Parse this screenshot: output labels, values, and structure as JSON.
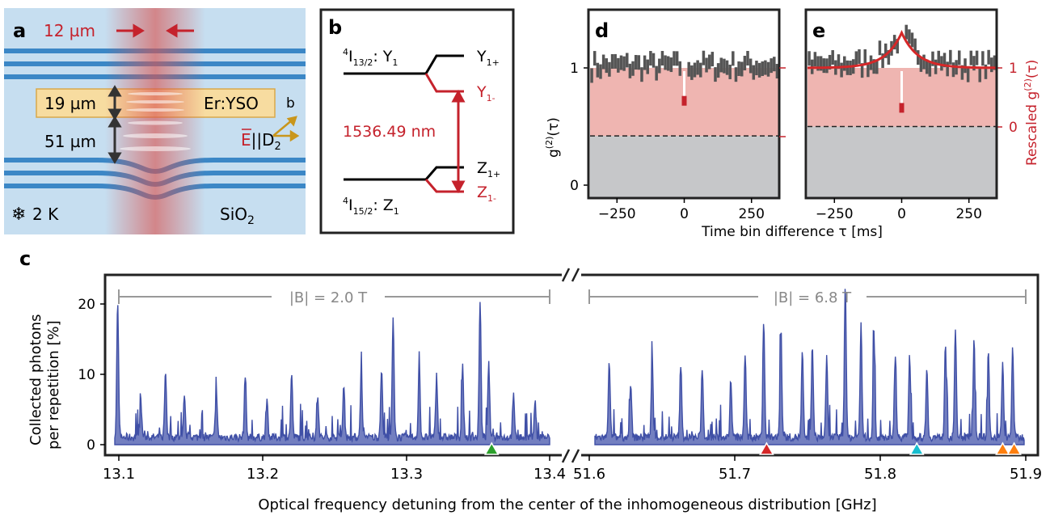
{
  "panels": {
    "a": {
      "label": "a",
      "width_label": "12 µm",
      "crystal_thickness": "19 µm",
      "crystal_label": "Er:YSO",
      "gap_label": "51 µm",
      "axis_label": "b",
      "pol_E": "E",
      "pol_rest": "||D",
      "pol_sub": "2",
      "temp_label": "2 K",
      "substrate": "SiO",
      "substrate_sub": "2",
      "colors": {
        "mirror": "#3b87c6",
        "crystal": "#f7dca0",
        "beam": "#d9534f",
        "arrow": "#c5222c"
      }
    },
    "b": {
      "label": "b",
      "upper_pre": "4",
      "upper_I": "I",
      "upper_sub": "13/2",
      "upper_state": ": Y",
      "upper_state_sub": "1",
      "lower_pre": "4",
      "lower_I": "I",
      "lower_sub": "15/2",
      "lower_state": ": Z",
      "lower_state_sub": "1",
      "Y1p": "Y",
      "Y1p_sub": "1+",
      "Y1m": "Y",
      "Y1m_sub": "1-",
      "Z1p": "Z",
      "Z1p_sub": "1+",
      "Z1m": "Z",
      "Z1m_sub": "1-",
      "transition": "1536.49 nm"
    },
    "d": {
      "label": "d",
      "ylabel_g": "g",
      "ylabel_sup": "(2)",
      "ylabel_tau": "(τ)",
      "yticks": [
        "0",
        "1"
      ]
    },
    "e": {
      "label": "e",
      "right_label": "Rescaled g",
      "right_sup": "(2)",
      "right_tau": "(τ)",
      "right_ticks": [
        "0",
        "1"
      ]
    },
    "de_shared": {
      "xticks": [
        "−250",
        "0",
        "250"
      ],
      "xlabel": "Time bin difference τ [ms]"
    },
    "c": {
      "label": "c",
      "ylabel_line1": "Collected photons",
      "ylabel_line2": "per repetition [%]",
      "yticks": [
        "0",
        "10",
        "20"
      ],
      "field1": "|B| = 2.0 T",
      "field2": "|B| = 6.8 T",
      "xticks_left": [
        "13.1",
        "13.2",
        "13.3",
        "13.4"
      ],
      "xticks_right": [
        "51.6",
        "51.7",
        "51.8",
        "51.9"
      ],
      "xlabel": "Optical frequency detuning from the center of the inhomogeneous distribution [GHz]",
      "markers": [
        {
          "ghz": 13.36,
          "color": "#2ca02c"
        },
        {
          "ghz": 51.72,
          "color": "#d62728"
        },
        {
          "ghz": 51.825,
          "color": "#17becf"
        },
        {
          "ghz": 51.885,
          "color": "#ff7f0e"
        },
        {
          "ghz": 51.893,
          "color": "#ff7f0e"
        }
      ],
      "line_color": "#3f4fa6",
      "fill_color": "#5a68b5"
    }
  },
  "chart_data": [
    {
      "type": "bar",
      "panel": "d",
      "xlabel": "Time bin difference τ [ms]",
      "ylabel": "g(2)(τ)",
      "xlim": [
        -350,
        350
      ],
      "ylim": [
        0,
        1.4
      ],
      "baseline_dashed": 0.42,
      "zero_delay_value": 0.74,
      "mean_level": 1.0
    },
    {
      "type": "bar",
      "panel": "e",
      "xlabel": "Time bin difference τ [ms]",
      "ylabel": "Rescaled g(2)(τ)",
      "xlim": [
        -350,
        350
      ],
      "ylim": [
        0,
        1.4
      ],
      "baseline_dashed": 0.5,
      "zero_delay_value": 0.68,
      "peak_value": 1.3,
      "fit": "exponential bunching decay"
    },
    {
      "type": "line",
      "panel": "c",
      "xlabel": "Optical frequency detuning from the center of the inhomogeneous distribution [GHz]",
      "ylabel": "Collected photons per repetition [%]",
      "ylim": [
        0,
        23
      ],
      "segments": [
        {
          "xlim": [
            13.1,
            13.4
          ],
          "field": "|B| = 2.0 T",
          "peaks": [
            [
              13.102,
              18.8
            ],
            [
              13.118,
              5.0
            ],
            [
              13.135,
              9.5
            ],
            [
              13.148,
              6.0
            ],
            [
              13.17,
              6.5
            ],
            [
              13.19,
              9.0
            ],
            [
              13.205,
              5.5
            ],
            [
              13.222,
              9.0
            ],
            [
              13.24,
              6.0
            ],
            [
              13.258,
              7.0
            ],
            [
              13.27,
              9.3
            ],
            [
              13.284,
              9.8
            ],
            [
              13.292,
              16.8
            ],
            [
              13.31,
              10.2
            ],
            [
              13.322,
              8.8
            ],
            [
              13.34,
              10.0
            ],
            [
              13.352,
              19.7
            ],
            [
              13.358,
              10.5
            ],
            [
              13.375,
              6.0
            ],
            [
              13.39,
              5.0
            ]
          ]
        },
        {
          "xlim": [
            51.6,
            51.9
          ],
          "field": "|B| = 6.8 T",
          "peaks": [
            [
              51.61,
              11.2
            ],
            [
              51.625,
              8.0
            ],
            [
              51.64,
              11.5
            ],
            [
              51.66,
              10.5
            ],
            [
              51.675,
              10.0
            ],
            [
              51.695,
              8.0
            ],
            [
              51.705,
              12.0
            ],
            [
              51.718,
              16.5
            ],
            [
              51.73,
              14.8
            ],
            [
              51.745,
              12.0
            ],
            [
              51.752,
              13.0
            ],
            [
              51.762,
              11.5
            ],
            [
              51.775,
              22.0
            ],
            [
              51.786,
              16.2
            ],
            [
              51.795,
              15.0
            ],
            [
              51.81,
              12.0
            ],
            [
              51.82,
              11.5
            ],
            [
              51.832,
              10.0
            ],
            [
              51.845,
              13.5
            ],
            [
              51.852,
              15.6
            ],
            [
              51.865,
              14.0
            ],
            [
              51.875,
              12.0
            ],
            [
              51.885,
              10.5
            ],
            [
              51.892,
              13.0
            ]
          ]
        }
      ]
    }
  ]
}
